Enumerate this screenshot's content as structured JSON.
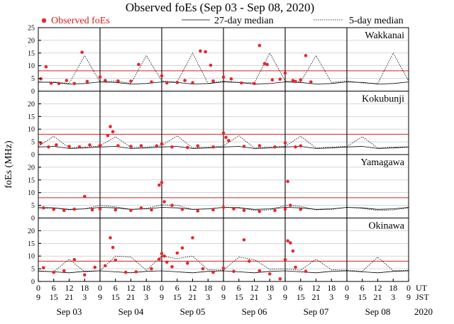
{
  "chart_data": {
    "type": "scatter",
    "title": "Observed foEs (Sep 03 - Sep 08, 2020)",
    "ylabel": "foEs (MHz)",
    "ylim": [
      0,
      25
    ],
    "yticks": [
      0,
      5,
      10,
      15,
      20,
      25
    ],
    "reference_line_MHz": 8,
    "legend": {
      "observed": "Observed foEs",
      "median27": "27-day median",
      "median5": "5-day median",
      "placement": "top"
    },
    "x_axis": {
      "ut_label": "UT",
      "jst_label": "JST",
      "year_label": "2020",
      "ut_ticks": [
        "0",
        "6",
        "12",
        "18",
        "0",
        "6",
        "12",
        "18",
        "0",
        "6",
        "12",
        "18",
        "0",
        "6",
        "12",
        "18",
        "0",
        "6",
        "12",
        "18",
        "0",
        "6",
        "12",
        "18",
        "0"
      ],
      "jst_ticks": [
        "9",
        "15",
        "21",
        "3",
        "9",
        "15",
        "21",
        "3",
        "9",
        "15",
        "21",
        "3",
        "9",
        "15",
        "21",
        "3",
        "9",
        "15",
        "21",
        "3",
        "9",
        "15",
        "21",
        "3",
        "9"
      ],
      "days": [
        "Sep 03",
        "Sep 04",
        "Sep 05",
        "Sep 06",
        "Sep 07",
        "Sep 08"
      ]
    },
    "panels": [
      {
        "station": "Wakkanai",
        "median27": [
          3.6,
          3.4,
          2.8,
          3.0,
          3.6,
          3.4,
          2.8,
          3.0,
          3.6,
          3.4,
          2.8,
          3.0,
          3.6,
          3.4,
          2.8,
          3.0,
          3.6,
          3.4,
          2.8,
          3.0,
          3.6,
          3.4,
          2.8,
          3.0,
          3.6
        ],
        "median5": [
          3.4,
          3.6,
          3.0,
          14.0,
          3.6,
          4.0,
          3.0,
          14.0,
          4.0,
          3.6,
          15.0,
          3.0,
          4.0,
          3.4,
          3.2,
          15.0,
          4.0,
          3.6,
          14.0,
          3.4,
          4.0,
          3.2,
          3.0,
          15.0,
          4.0
        ],
        "observed": [
          [
            1,
            4.8
          ],
          [
            3,
            9.6
          ],
          [
            5,
            3.1
          ],
          [
            8,
            3.0
          ],
          [
            11,
            4.2
          ],
          [
            14,
            3.0
          ],
          [
            17,
            15.3
          ],
          [
            19,
            3.8
          ],
          [
            24,
            5.6
          ],
          [
            26,
            4.2
          ],
          [
            31,
            4.0
          ],
          [
            36,
            3.9
          ],
          [
            39,
            10.5
          ],
          [
            44,
            3.6
          ],
          [
            48,
            6.0
          ],
          [
            50,
            3.2
          ],
          [
            54,
            3.4
          ],
          [
            57,
            4.2
          ],
          [
            60,
            3.3
          ],
          [
            63,
            15.8
          ],
          [
            65,
            15.5
          ],
          [
            67,
            10.2
          ],
          [
            68,
            4.0
          ],
          [
            72,
            5.5
          ],
          [
            75,
            4.8
          ],
          [
            79,
            3.2
          ],
          [
            84,
            3.0
          ],
          [
            86,
            18.0
          ],
          [
            88,
            10.8
          ],
          [
            89,
            10.5
          ],
          [
            91,
            4.4
          ],
          [
            94,
            4.7
          ],
          [
            96,
            7.1
          ],
          [
            99,
            4.2
          ],
          [
            100,
            3.8
          ],
          [
            102,
            4.4
          ],
          [
            104,
            14.0
          ],
          [
            106,
            3.6
          ]
        ]
      },
      {
        "station": "Kokubunji",
        "median27": [
          3.0,
          3.2,
          2.4,
          2.6,
          3.0,
          3.2,
          2.4,
          2.6,
          3.0,
          3.2,
          2.4,
          2.6,
          3.0,
          3.2,
          2.4,
          2.6,
          3.0,
          3.2,
          2.4,
          2.6,
          3.0,
          3.2,
          2.4,
          2.6,
          3.0
        ],
        "median5": [
          3.2,
          7.2,
          2.6,
          3.0,
          3.4,
          7.0,
          2.8,
          3.0,
          3.6,
          7.4,
          2.6,
          3.0,
          3.4,
          7.4,
          2.6,
          3.0,
          3.2,
          7.2,
          2.6,
          3.0,
          3.2,
          7.0,
          2.6,
          3.0,
          3.0
        ],
        "observed": [
          [
            1,
            4.5
          ],
          [
            4,
            3.0
          ],
          [
            7,
            3.8
          ],
          [
            12,
            3.2
          ],
          [
            16,
            3.0
          ],
          [
            20,
            3.8
          ],
          [
            24,
            3.6
          ],
          [
            27,
            7.5
          ],
          [
            28,
            11.0
          ],
          [
            29,
            9.0
          ],
          [
            31,
            3.5
          ],
          [
            36,
            3.2
          ],
          [
            40,
            3.5
          ],
          [
            46,
            3.4
          ],
          [
            48,
            4.2
          ],
          [
            52,
            3.0
          ],
          [
            58,
            2.8
          ],
          [
            62,
            3.4
          ],
          [
            68,
            3.0
          ],
          [
            72,
            8.5
          ],
          [
            73,
            6.8
          ],
          [
            74,
            5.5
          ],
          [
            80,
            3.2
          ],
          [
            86,
            3.5
          ],
          [
            92,
            3.0
          ],
          [
            96,
            4.6
          ],
          [
            100,
            3.0
          ],
          [
            102,
            3.4
          ]
        ]
      },
      {
        "station": "Yamagawa",
        "median27": [
          4.2,
          4.0,
          3.4,
          3.6,
          4.2,
          4.0,
          3.4,
          3.6,
          4.2,
          4.0,
          3.4,
          3.6,
          4.2,
          4.0,
          3.4,
          3.6,
          4.2,
          4.0,
          3.4,
          3.6,
          4.2,
          4.0,
          3.4,
          3.6,
          4.2
        ],
        "median5": [
          3.6,
          4.0,
          3.2,
          3.6,
          5.0,
          4.4,
          3.4,
          3.8,
          5.2,
          5.0,
          3.4,
          3.6,
          4.2,
          4.2,
          3.0,
          3.2,
          5.0,
          4.6,
          3.2,
          3.4,
          4.2,
          3.8,
          3.0,
          3.2,
          4.0
        ],
        "observed": [
          [
            2,
            4.0
          ],
          [
            6,
            3.4
          ],
          [
            10,
            3.0
          ],
          [
            14,
            3.5
          ],
          [
            18,
            8.5
          ],
          [
            21,
            3.2
          ],
          [
            24,
            3.6
          ],
          [
            30,
            3.2
          ],
          [
            36,
            3.0
          ],
          [
            40,
            4.0
          ],
          [
            44,
            3.2
          ],
          [
            47,
            13.0
          ],
          [
            48,
            14.0
          ],
          [
            49,
            6.4
          ],
          [
            52,
            5.0
          ],
          [
            56,
            3.4
          ],
          [
            62,
            2.8
          ],
          [
            68,
            3.2
          ],
          [
            72,
            4.2
          ],
          [
            76,
            3.6
          ],
          [
            80,
            3.0
          ],
          [
            86,
            2.6
          ],
          [
            92,
            3.0
          ],
          [
            96,
            3.5
          ],
          [
            97,
            14.4
          ],
          [
            98,
            5.0
          ],
          [
            102,
            3.4
          ]
        ]
      },
      {
        "station": "Okinawa",
        "median27": [
          4.2,
          3.8,
          3.4,
          4.0,
          4.2,
          3.8,
          3.4,
          4.0,
          4.2,
          3.8,
          3.4,
          4.0,
          4.2,
          3.8,
          3.4,
          4.0,
          4.2,
          3.8,
          3.4,
          4.0,
          4.2,
          3.8,
          3.4,
          4.0,
          4.2
        ],
        "median5": [
          4.0,
          3.8,
          8.8,
          3.8,
          4.2,
          10.0,
          9.6,
          4.4,
          10.0,
          9.0,
          10.0,
          4.6,
          4.4,
          9.6,
          8.6,
          4.8,
          5.0,
          4.4,
          8.8,
          4.6,
          4.4,
          4.0,
          9.6,
          4.2,
          4.4
        ],
        "observed": [
          [
            2,
            5.4
          ],
          [
            6,
            3.6
          ],
          [
            10,
            4.2
          ],
          [
            14,
            8.6
          ],
          [
            18,
            2.6
          ],
          [
            22,
            5.6
          ],
          [
            26,
            6.2
          ],
          [
            28,
            17.2
          ],
          [
            29,
            13.4
          ],
          [
            30,
            8.4
          ],
          [
            34,
            3.6
          ],
          [
            38,
            3.8
          ],
          [
            44,
            5.0
          ],
          [
            47,
            8.8
          ],
          [
            48,
            11.0
          ],
          [
            49,
            10.0
          ],
          [
            50,
            7.6
          ],
          [
            52,
            5.8
          ],
          [
            54,
            11.2
          ],
          [
            56,
            13.2
          ],
          [
            58,
            7.2
          ],
          [
            60,
            17.2
          ],
          [
            64,
            5.0
          ],
          [
            68,
            3.6
          ],
          [
            72,
            5.2
          ],
          [
            76,
            4.0
          ],
          [
            80,
            16.4
          ],
          [
            82,
            8.0
          ],
          [
            86,
            4.2
          ],
          [
            90,
            3.0
          ],
          [
            94,
            1.0
          ],
          [
            96,
            8.6
          ],
          [
            97,
            16.0
          ],
          [
            98,
            15.2
          ],
          [
            99,
            12.0
          ],
          [
            100,
            5.6
          ],
          [
            104,
            4.0
          ]
        ]
      }
    ]
  }
}
